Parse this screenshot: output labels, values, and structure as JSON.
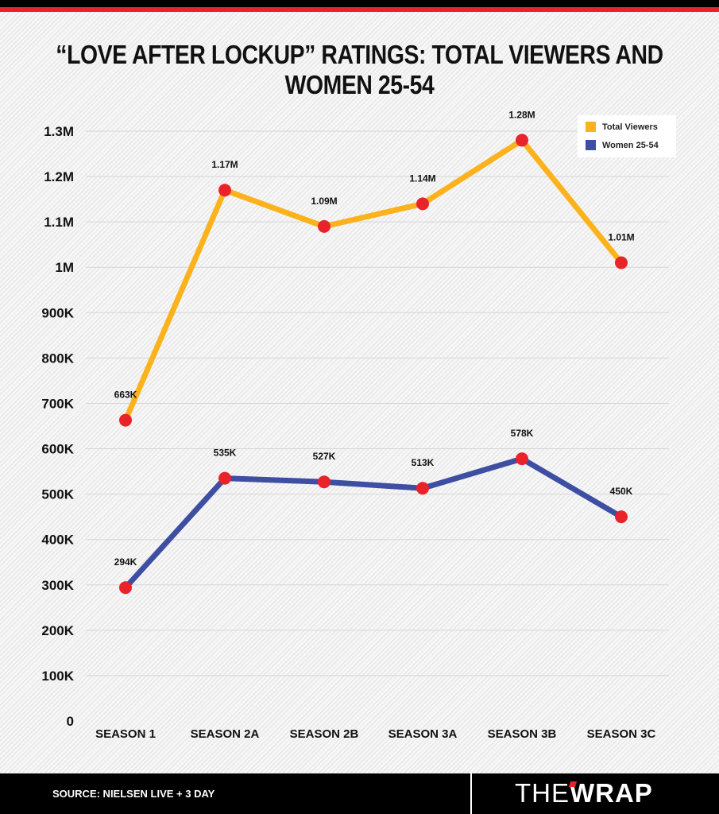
{
  "header": {
    "title": "“LOVE AFTER LOCKUP” RATINGS: TOTAL VIEWERS AND WOMEN 25-54"
  },
  "chart_data": {
    "type": "line",
    "title": "“LOVE AFTER LOCKUP” RATINGS: TOTAL VIEWERS AND WOMEN 25-54",
    "categories": [
      "SEASON 1",
      "SEASON 2A",
      "SEASON 2B",
      "SEASON 3A",
      "SEASON 3B",
      "SEASON 3C"
    ],
    "ylim": [
      0,
      1300000
    ],
    "yticks": [
      0,
      100000,
      200000,
      300000,
      400000,
      500000,
      600000,
      700000,
      800000,
      900000,
      1000000,
      1100000,
      1200000,
      1300000
    ],
    "ytick_labels": [
      "0",
      "100K",
      "200K",
      "300K",
      "400K",
      "500K",
      "600K",
      "700K",
      "800K",
      "900K",
      "1M",
      "1.1M",
      "1.2M",
      "1.3M"
    ],
    "grid": true,
    "legend_position": "top-right",
    "series": [
      {
        "name": "Total Viewers",
        "color": "#fbb21c",
        "values": [
          663000,
          1170000,
          1090000,
          1140000,
          1280000,
          1010000
        ],
        "labels": [
          "663K",
          "1.17M",
          "1.09M",
          "1.14M",
          "1.28M",
          "1.01M"
        ]
      },
      {
        "name": "Women 25-54",
        "color": "#3d4ea3",
        "values": [
          294000,
          535000,
          527000,
          513000,
          578000,
          450000
        ],
        "labels": [
          "294K",
          "535K",
          "527K",
          "513K",
          "578K",
          "450K"
        ]
      }
    ],
    "marker_color": "#e8232a"
  },
  "footer": {
    "source": "SOURCE: NIELSEN LIVE + 3 DAY",
    "logo_text": "THEWRAP"
  }
}
